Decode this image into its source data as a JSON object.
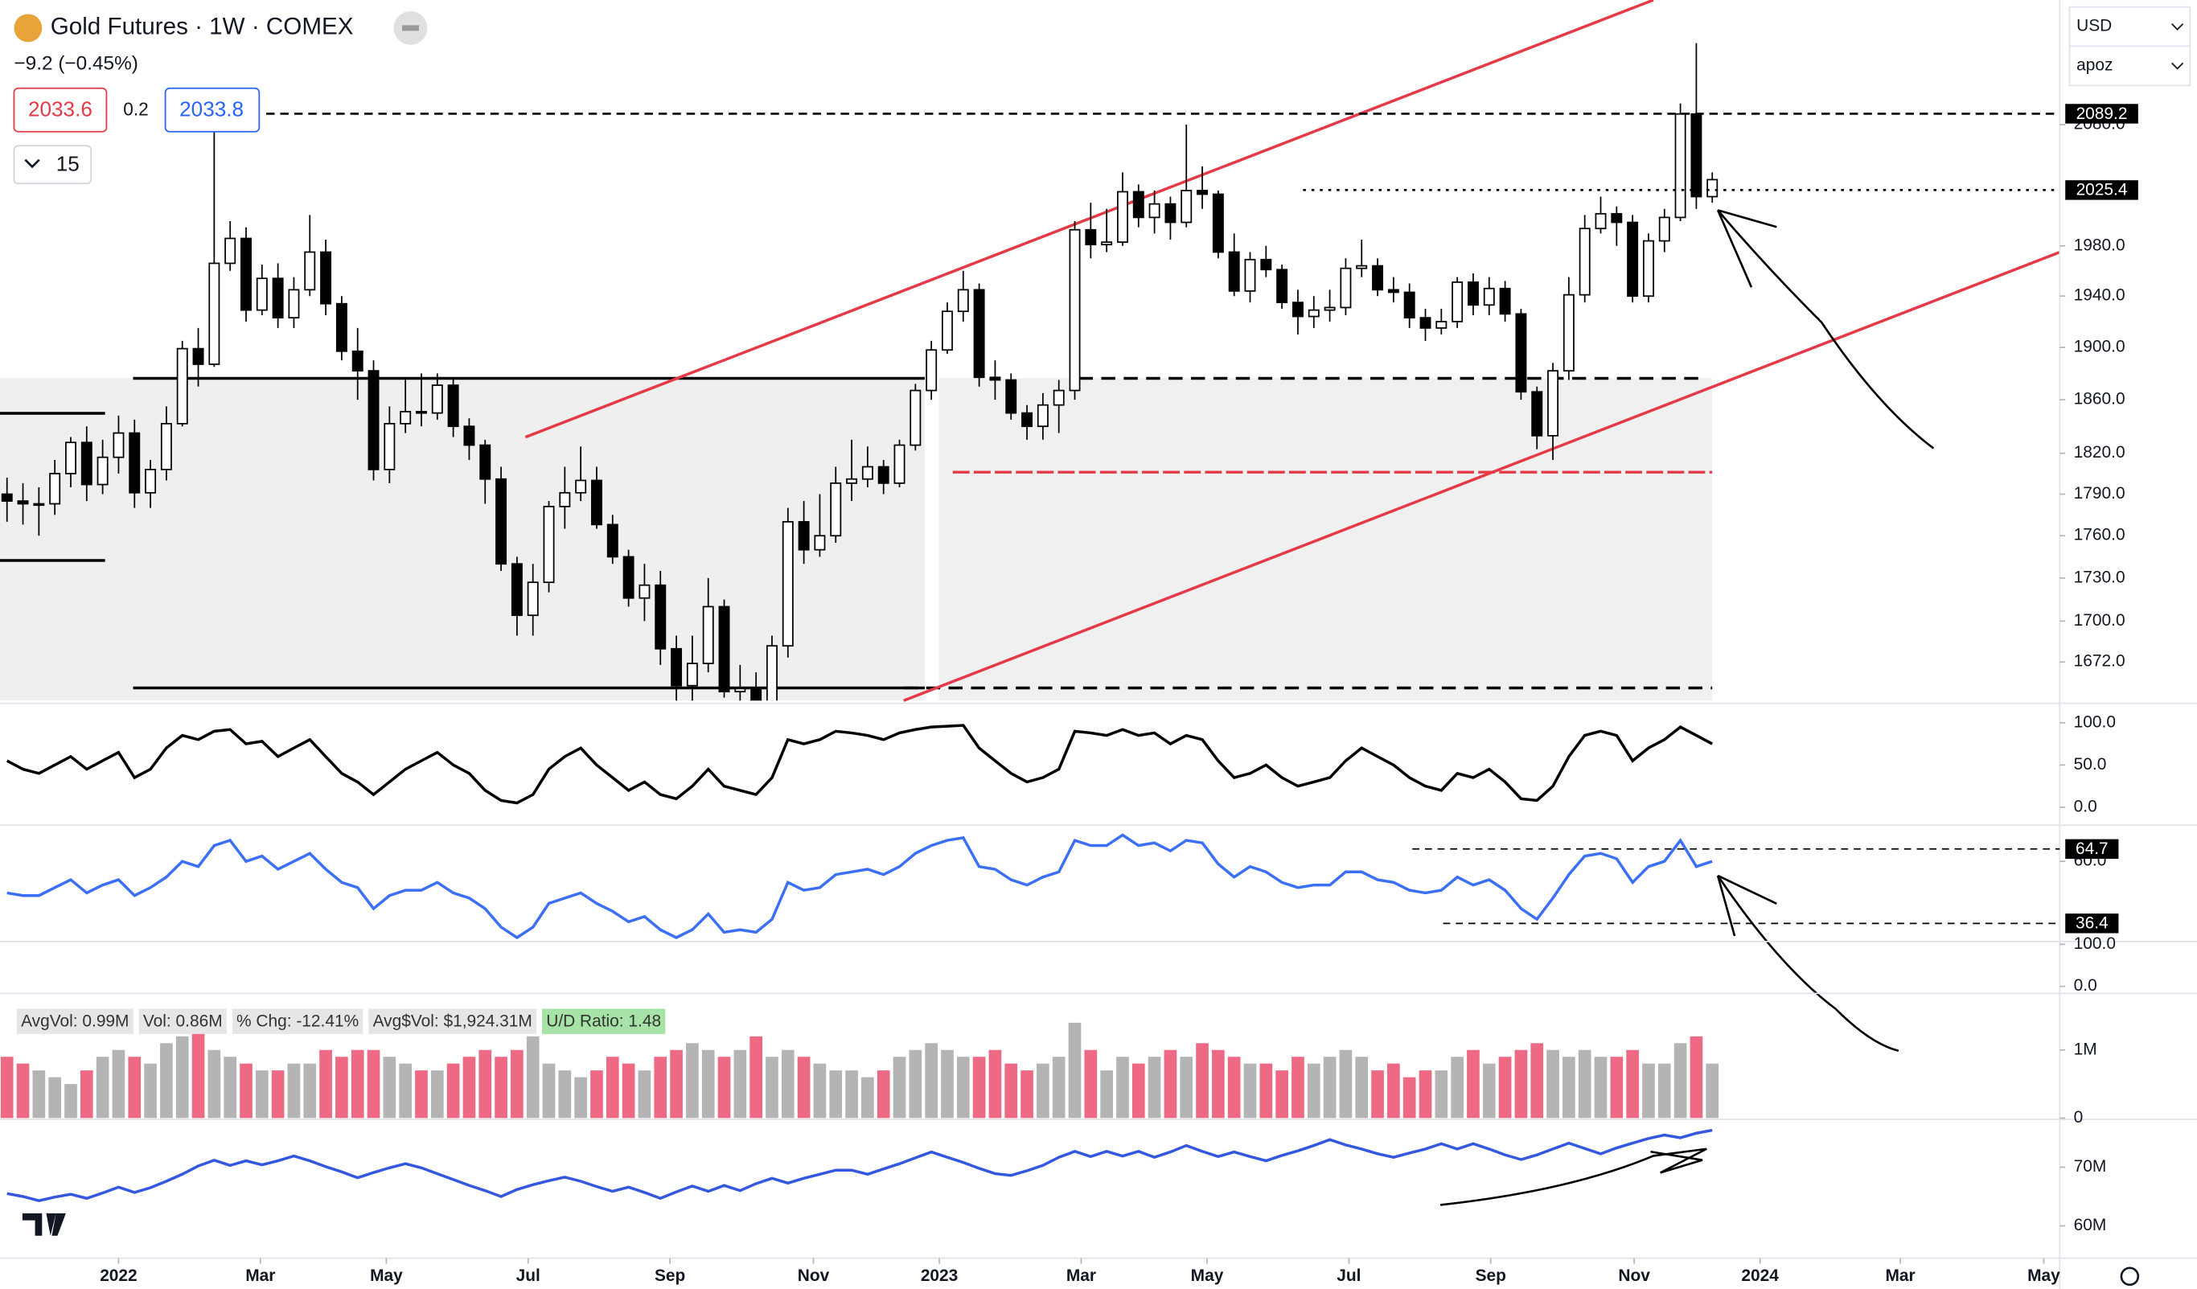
{
  "header": {
    "title": "Gold Futures · 1W · COMEX",
    "change": "−9.2 (−0.45%)",
    "sell": "2033.6",
    "spread": "0.2",
    "buy": "2033.8",
    "interval_count": "15",
    "currency": "USD",
    "user": "apoz"
  },
  "chart_data": [
    {
      "type": "candlestick",
      "log_scale": true,
      "ylim": [
        1646,
        2188
      ],
      "yticks": [
        {
          "value": 1672,
          "label": "1672.0"
        },
        {
          "value": 1700,
          "label": "1700.0"
        },
        {
          "value": 1730,
          "label": "1730.0"
        },
        {
          "value": 1760,
          "label": "1760.0"
        },
        {
          "value": 1790,
          "label": "1790.0"
        },
        {
          "value": 1820,
          "label": "1820.0"
        },
        {
          "value": 1860,
          "label": "1860.0"
        },
        {
          "value": 1900,
          "label": "1900.0"
        },
        {
          "value": 1940,
          "label": "1940.0"
        },
        {
          "value": 1980,
          "label": "1980.0"
        },
        {
          "value": 2080,
          "label": "2080.0"
        }
      ],
      "xlim": [
        -0.44,
        128.8
      ],
      "xticks": [
        {
          "value": 7,
          "label": "2022"
        },
        {
          "value": 15.9,
          "label": "Mar"
        },
        {
          "value": 23.8,
          "label": "May"
        },
        {
          "value": 32.7,
          "label": "Jul"
        },
        {
          "value": 41.6,
          "label": "Sep"
        },
        {
          "value": 50.6,
          "label": "Nov"
        },
        {
          "value": 58.5,
          "label": "2023"
        },
        {
          "value": 67.4,
          "label": "Mar"
        },
        {
          "value": 75.3,
          "label": "May"
        },
        {
          "value": 84.2,
          "label": "Jul"
        },
        {
          "value": 93.1,
          "label": "Sep"
        },
        {
          "value": 102.1,
          "label": "Nov"
        },
        {
          "value": 110,
          "label": "2024"
        },
        {
          "value": 118.8,
          "label": "Mar"
        },
        {
          "value": 127.8,
          "label": "May"
        }
      ],
      "open": [
        1790,
        1785,
        1783,
        1783,
        1805,
        1828,
        1797,
        1817,
        1835,
        1791,
        1808,
        1842,
        1899,
        1887,
        1966,
        1986,
        1929,
        1954,
        1923,
        1945,
        1975,
        1934,
        1897,
        1882,
        1808,
        1842,
        1851,
        1850,
        1871,
        1840,
        1826,
        1801,
        1740,
        1704,
        1727,
        1781,
        1791,
        1800,
        1768,
        1745,
        1716,
        1725,
        1681,
        1656,
        1671,
        1710,
        1652,
        1654,
        1645,
        1683,
        1770,
        1750,
        1760,
        1798,
        1801,
        1810,
        1798,
        1826,
        1867,
        1898,
        1928,
        1945,
        1877,
        1875,
        1850,
        1840,
        1856,
        1867,
        1993,
        1981,
        1983,
        2024,
        2003,
        2014,
        1999,
        2025,
        2022,
        1975,
        1944,
        1969,
        1961,
        1935,
        1924,
        1929,
        1931,
        1962,
        1964,
        1945,
        1943,
        1923,
        1915,
        1920,
        1951,
        1933,
        1946,
        1926,
        1866,
        1833,
        1882,
        1941,
        1994,
        2006,
        1999,
        1940,
        1984,
        2003,
        2089,
        2020
      ],
      "high": [
        1802,
        1798,
        1795,
        1815,
        1832,
        1840,
        1830,
        1848,
        1845,
        1815,
        1855,
        1905,
        1915,
        2080,
        2000,
        1995,
        1965,
        1966,
        1955,
        2005,
        1985,
        1940,
        1915,
        1890,
        1855,
        1875,
        1880,
        1880,
        1876,
        1846,
        1830,
        1810,
        1745,
        1740,
        1785,
        1810,
        1825,
        1810,
        1775,
        1750,
        1740,
        1735,
        1690,
        1690,
        1730,
        1715,
        1670,
        1665,
        1690,
        1780,
        1785,
        1790,
        1810,
        1830,
        1825,
        1815,
        1830,
        1872,
        1905,
        1935,
        1960,
        1950,
        1890,
        1880,
        1856,
        1865,
        1875,
        2000,
        2015,
        2010,
        2040,
        2030,
        2025,
        2020,
        2080,
        2045,
        2025,
        1990,
        1975,
        1980,
        1965,
        1945,
        1940,
        1945,
        1970,
        1985,
        1970,
        1955,
        1950,
        1930,
        1930,
        1955,
        1958,
        1955,
        1952,
        1930,
        1870,
        1888,
        1955,
        2005,
        2020,
        2012,
        2005,
        1990,
        2010,
        2098,
        2150,
        2040
      ],
      "low": [
        1770,
        1768,
        1760,
        1775,
        1795,
        1785,
        1790,
        1805,
        1780,
        1780,
        1800,
        1840,
        1870,
        1885,
        1960,
        1920,
        1925,
        1915,
        1915,
        1940,
        1925,
        1890,
        1860,
        1800,
        1798,
        1835,
        1840,
        1845,
        1832,
        1815,
        1783,
        1735,
        1690,
        1690,
        1720,
        1765,
        1785,
        1765,
        1740,
        1710,
        1700,
        1670,
        1645,
        1645,
        1665,
        1648,
        1640,
        1648,
        1640,
        1675,
        1740,
        1745,
        1755,
        1785,
        1795,
        1790,
        1795,
        1822,
        1860,
        1895,
        1920,
        1870,
        1860,
        1845,
        1830,
        1830,
        1835,
        1860,
        1970,
        1975,
        1980,
        1995,
        1990,
        1985,
        1995,
        2010,
        1970,
        1940,
        1935,
        1955,
        1930,
        1910,
        1915,
        1920,
        1925,
        1955,
        1940,
        1935,
        1915,
        1905,
        1910,
        1915,
        1925,
        1925,
        1920,
        1860,
        1823,
        1815,
        1875,
        1935,
        1990,
        1980,
        1935,
        1935,
        1975,
        2000,
        2010,
        2015
      ],
      "close": [
        1785,
        1783,
        1783,
        1805,
        1828,
        1797,
        1817,
        1835,
        1791,
        1808,
        1842,
        1899,
        1887,
        1966,
        1986,
        1929,
        1954,
        1923,
        1945,
        1975,
        1934,
        1897,
        1882,
        1808,
        1842,
        1851,
        1850,
        1871,
        1840,
        1826,
        1801,
        1740,
        1704,
        1727,
        1781,
        1791,
        1800,
        1768,
        1745,
        1716,
        1725,
        1681,
        1656,
        1671,
        1710,
        1652,
        1654,
        1645,
        1683,
        1770,
        1750,
        1760,
        1798,
        1801,
        1810,
        1798,
        1826,
        1867,
        1898,
        1928,
        1945,
        1877,
        1875,
        1850,
        1840,
        1856,
        1867,
        1993,
        1981,
        1983,
        2024,
        2003,
        2014,
        1999,
        2025,
        2022,
        1975,
        1944,
        1969,
        1961,
        1935,
        1924,
        1929,
        1931,
        1962,
        1964,
        1945,
        1943,
        1923,
        1915,
        1920,
        1951,
        1933,
        1946,
        1926,
        1866,
        1833,
        1882,
        1941,
        1994,
        2006,
        1999,
        1940,
        1984,
        2003,
        2089,
        2020,
        2034
      ],
      "up_color": "#ffffff",
      "down_color": "#000000",
      "price_levels": [
        2089.2,
        2025.4
      ]
    },
    {
      "type": "line",
      "ylim": [
        -21.3,
        121.3
      ],
      "yticks": [
        {
          "value": 100,
          "label": "100.0"
        },
        {
          "value": 50,
          "label": "50.0"
        },
        {
          "value": 0,
          "label": "0.0"
        }
      ],
      "series": [
        {
          "color": "#000000",
          "values": [
            55,
            45,
            40,
            50,
            60,
            45,
            55,
            65,
            35,
            45,
            70,
            85,
            80,
            90,
            92,
            75,
            78,
            60,
            70,
            80,
            60,
            40,
            30,
            15,
            30,
            45,
            55,
            65,
            50,
            40,
            20,
            8,
            5,
            15,
            45,
            60,
            70,
            50,
            35,
            20,
            30,
            15,
            10,
            25,
            45,
            25,
            20,
            15,
            35,
            80,
            75,
            80,
            90,
            88,
            85,
            80,
            88,
            92,
            95,
            96,
            97,
            70,
            55,
            40,
            30,
            35,
            45,
            90,
            88,
            85,
            92,
            85,
            88,
            75,
            85,
            80,
            55,
            35,
            40,
            50,
            35,
            25,
            30,
            35,
            55,
            70,
            60,
            50,
            35,
            25,
            20,
            40,
            35,
            45,
            30,
            10,
            8,
            25,
            60,
            85,
            90,
            85,
            55,
            70,
            80,
            95,
            85,
            75
          ]
        }
      ]
    },
    {
      "type": "line",
      "ylim": [
        29.5,
        73.2
      ],
      "yticks": [
        {
          "value": 60,
          "label": "60.0"
        }
      ],
      "levels": [
        64.7,
        36.4
      ],
      "series": [
        {
          "color": "#3b6ff5",
          "values": [
            48,
            47,
            47,
            50,
            53,
            48,
            51,
            53,
            47,
            50,
            54,
            60,
            58,
            66,
            68,
            60,
            62,
            57,
            60,
            63,
            57,
            52,
            50,
            42,
            47,
            49,
            49,
            52,
            48,
            46,
            42,
            35,
            31,
            35,
            44,
            46,
            48,
            44,
            41,
            37,
            39,
            34,
            31,
            34,
            40,
            33,
            34,
            33,
            38,
            52,
            49,
            50,
            55,
            56,
            57,
            55,
            58,
            63,
            66,
            68,
            69,
            58,
            57,
            53,
            51,
            54,
            56,
            68,
            66,
            66,
            70,
            66,
            67,
            64,
            68,
            67,
            59,
            54,
            58,
            56,
            52,
            50,
            51,
            51,
            56,
            56,
            53,
            52,
            49,
            48,
            49,
            54,
            51,
            53,
            49,
            42,
            38,
            46,
            55,
            62,
            63,
            61,
            52,
            58,
            60,
            68,
            58,
            60
          ]
        }
      ]
    },
    {
      "type": "line",
      "ylim": [
        -13.3,
        106.7
      ],
      "yticks": [
        {
          "value": 100,
          "label": "100.0"
        },
        {
          "value": 0,
          "label": "0.0"
        }
      ],
      "series": []
    },
    {
      "type": "bar",
      "ylim": [
        0,
        1770000
      ],
      "yticks": [
        {
          "value": 1000000,
          "label": "1M"
        },
        0
      ],
      "stats": [
        "AvgVol: 0.99M",
        "Vol: 0.86M",
        "% Chg: -12.41%",
        "Avg$Vol: $1,924.31M",
        "U/D Ratio: 1.48"
      ],
      "up_color": "#b4b4b4",
      "down_color": "#ee6a84",
      "values": [
        900000,
        800000,
        700000,
        600000,
        500000,
        700000,
        900000,
        1000000,
        900000,
        800000,
        1100000,
        1200000,
        1400000,
        1000000,
        900000,
        800000,
        700000,
        700000,
        800000,
        800000,
        1000000,
        900000,
        1000000,
        1000000,
        900000,
        800000,
        700000,
        700000,
        800000,
        900000,
        1000000,
        900000,
        1000000,
        1200000,
        800000,
        700000,
        600000,
        700000,
        900000,
        800000,
        700000,
        900000,
        1000000,
        1100000,
        1000000,
        900000,
        1000000,
        1200000,
        900000,
        1000000,
        900000,
        800000,
        700000,
        700000,
        600000,
        700000,
        900000,
        1000000,
        1100000,
        1000000,
        900000,
        900000,
        1000000,
        800000,
        700000,
        800000,
        900000,
        1400000,
        1000000,
        700000,
        900000,
        800000,
        900000,
        1000000,
        900000,
        1100000,
        1000000,
        900000,
        800000,
        800000,
        700000,
        900000,
        800000,
        900000,
        1000000,
        900000,
        700000,
        800000,
        600000,
        700000,
        700000,
        900000,
        1000000,
        800000,
        900000,
        1000000,
        1100000,
        1000000,
        900000,
        1000000,
        900000,
        900000,
        1000000,
        800000,
        800000,
        1100000,
        1200000,
        800000
      ]
    },
    {
      "type": "line",
      "ylim": [
        54500000,
        77900000
      ],
      "yticks": [
        {
          "value": 70000000,
          "label": "70M"
        },
        {
          "value": 60000000,
          "label": "60M"
        }
      ],
      "series": [
        {
          "color": "#3457e0",
          "values": [
            65500000,
            65000000,
            64300000,
            64900000,
            65400000,
            64700000,
            65600000,
            66600000,
            65700000,
            66500000,
            67600000,
            68800000,
            70200000,
            71200000,
            70300000,
            71100000,
            70400000,
            71100000,
            71900000,
            71100000,
            70100000,
            69200000,
            68200000,
            69100000,
            69900000,
            70600000,
            69900000,
            68900000,
            67900000,
            66900000,
            66000000,
            65000000,
            66200000,
            67000000,
            67700000,
            68300000,
            67600000,
            66700000,
            65900000,
            66600000,
            65700000,
            64700000,
            65800000,
            66800000,
            65900000,
            66900000,
            66000000,
            67200000,
            68100000,
            67300000,
            68100000,
            68800000,
            69500000,
            69500000,
            68800000,
            69700000,
            70600000,
            71600000,
            72600000,
            71700000,
            70800000,
            69800000,
            68900000,
            68600000,
            69400000,
            70300000,
            71700000,
            72700000,
            71800000,
            72700000,
            71900000,
            72700000,
            71700000,
            72600000,
            73700000,
            72700000,
            71800000,
            72600000,
            71800000,
            71100000,
            72000000,
            72800000,
            73700000,
            74700000,
            73800000,
            73100000,
            72300000,
            71700000,
            72400000,
            73100000,
            74000000,
            73100000,
            74000000,
            73100000,
            72100000,
            71300000,
            72100000,
            73100000,
            74100000,
            73200000,
            72300000,
            73300000,
            74100000,
            74900000,
            75500000,
            75000000,
            75800000,
            76300000
          ]
        }
      ]
    }
  ]
}
